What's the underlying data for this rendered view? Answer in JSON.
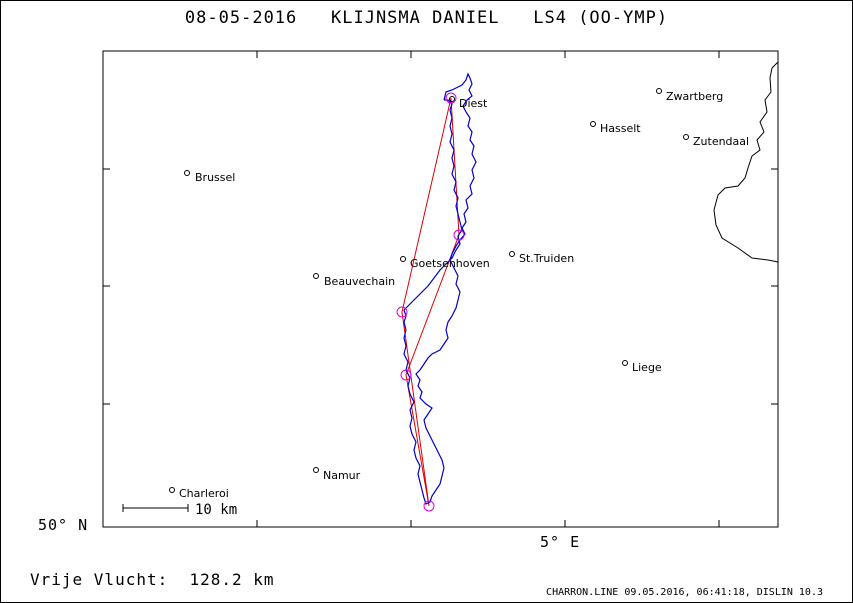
{
  "title": {
    "date": "08-05-2016",
    "pilot": "KLIJNSMA DANIEL",
    "glider": "LS4 (OO-YMP)"
  },
  "axes": {
    "lat_label": "50° N",
    "lon_label": "5° E"
  },
  "scale_bar": {
    "label": "10 km"
  },
  "footer": {
    "flight": "Vrije Vlucht:  128.2 km",
    "credit": "CHARRON.LINE 09.05.2016, 06:41:18, DISLIN 10.3"
  },
  "towns": [
    {
      "name": "Diest"
    },
    {
      "name": "Zwartberg"
    },
    {
      "name": "Hasselt"
    },
    {
      "name": "Zutendaal"
    },
    {
      "name": "Brussel"
    },
    {
      "name": "Goetsenhoven"
    },
    {
      "name": "St.Truiden"
    },
    {
      "name": "Beauvechain"
    },
    {
      "name": "Liege"
    },
    {
      "name": "Namur"
    },
    {
      "name": "Charleroi"
    }
  ],
  "colors": {
    "track": "#0000cc",
    "task": "#dd0000",
    "turnpoint": "#dd00dd",
    "border": "#000000"
  }
}
